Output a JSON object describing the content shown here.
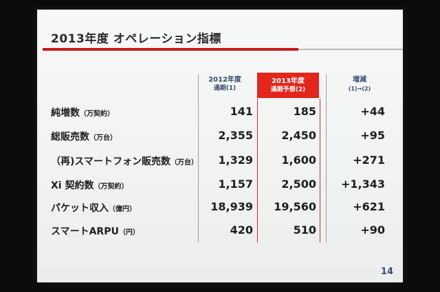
{
  "slide": {
    "title": "2013年度 オペレーション指標",
    "page_number": "14"
  },
  "table": {
    "headers": {
      "col2012_line1": "2012年度",
      "col2012_line2": "通期(1)",
      "col2013_line1": "2013年度",
      "col2013_line2": "通期予想(2)",
      "diff_line1": "増減",
      "diff_line2": "(1)→(2)"
    },
    "rows": [
      {
        "label": "純増数",
        "unit": "（万契約）",
        "v2012": "141",
        "v2013": "185",
        "diff": "+44"
      },
      {
        "label": "総販売数",
        "unit": "（万台）",
        "v2012": "2,355",
        "v2013": "2,450",
        "diff": "+95"
      },
      {
        "label": "（再)スマートフォン販売数",
        "unit": "（万台）",
        "v2012": "1,329",
        "v2013": "1,600",
        "diff": "+271"
      },
      {
        "label": "Xi 契約数",
        "unit": "（万契約）",
        "v2012": "1,157",
        "v2013": "2,500",
        "diff": "+1,343"
      },
      {
        "label": "パケット収入",
        "unit": "（億円）",
        "v2012": "18,939",
        "v2013": "19,560",
        "diff": "+621"
      },
      {
        "label": "スマートARPU",
        "unit": "（円）",
        "v2012": "420",
        "v2013": "510",
        "diff": "+90"
      }
    ]
  }
}
